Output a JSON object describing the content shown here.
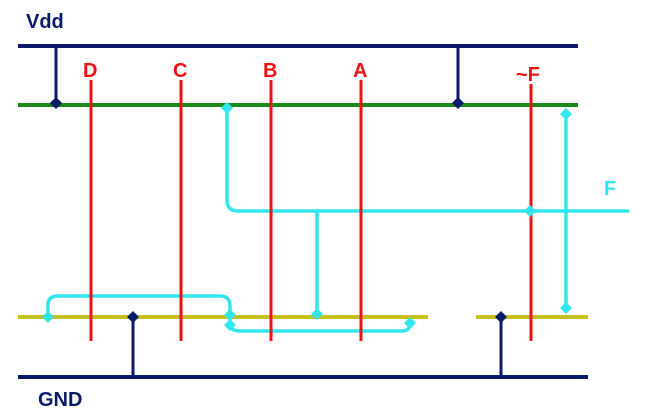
{
  "labels": {
    "vdd": "Vdd",
    "gnd": "GND",
    "gates": [
      "D",
      "C",
      "B",
      "A",
      "~F"
    ],
    "output": "F"
  },
  "colors": {
    "rail": "#0c1a6b",
    "pdiff": "#1a8a1a",
    "ndiff": "#c8c020",
    "poly": "#ee1111",
    "metal": "#33e6ee",
    "background": "#ffffff"
  }
}
